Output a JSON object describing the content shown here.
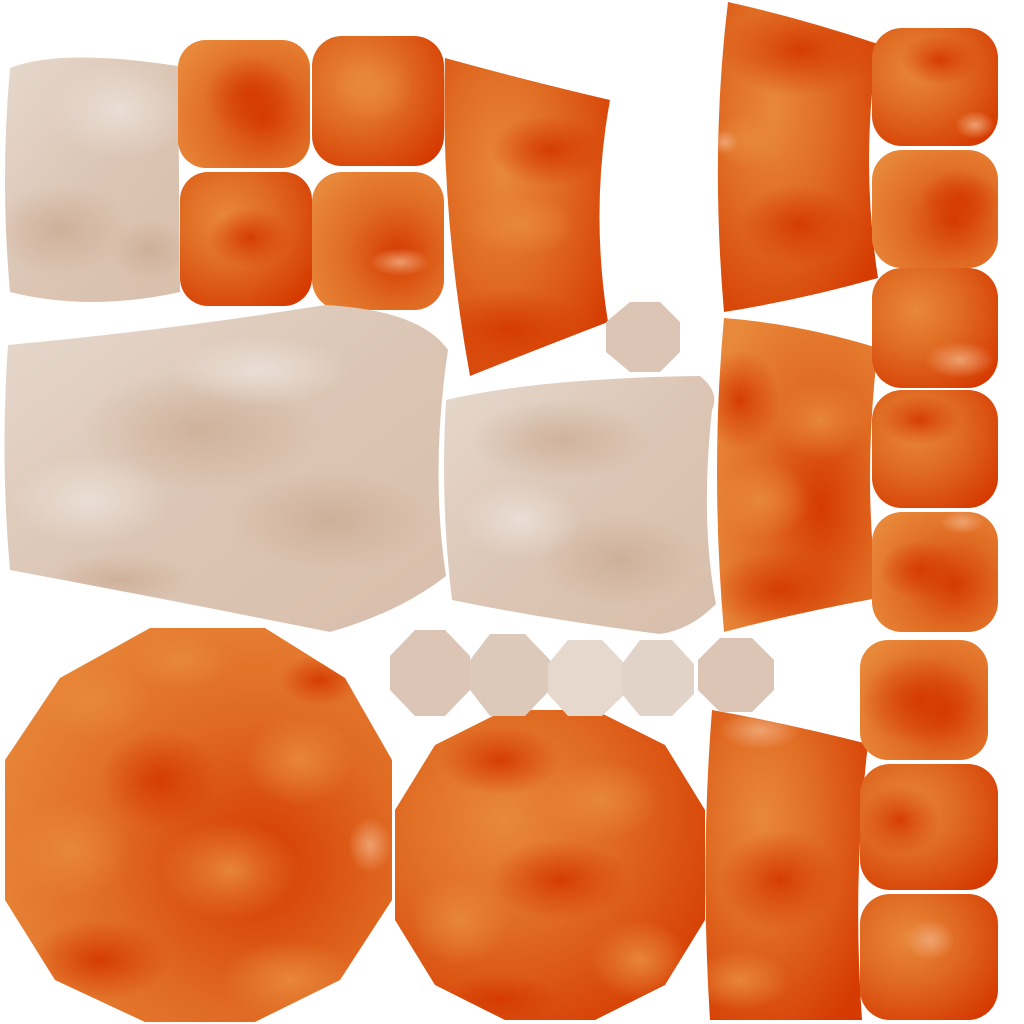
{
  "texture_atlas": {
    "background": "#ffffff",
    "palette": {
      "orange_deep": "#d53a00",
      "orange_mid": "#e06a22",
      "orange_light": "#e8883a",
      "orange_highlight": "#f0a878",
      "cream_base": "#dcc5b4",
      "cream_light": "#ebe0d8",
      "cream_shadow": "#c9a88f"
    },
    "islands": [
      {
        "id": "cream-panel-top-left",
        "material": "cream"
      },
      {
        "id": "orange-square-1",
        "material": "orange"
      },
      {
        "id": "orange-square-2",
        "material": "orange"
      },
      {
        "id": "orange-square-3",
        "material": "orange"
      },
      {
        "id": "orange-square-4",
        "material": "orange"
      },
      {
        "id": "orange-curved-panel-top",
        "material": "orange"
      },
      {
        "id": "cream-panel-large",
        "material": "cream"
      },
      {
        "id": "cream-panel-middle",
        "material": "cream"
      },
      {
        "id": "cream-octagon-small-top",
        "material": "cream"
      },
      {
        "id": "orange-strip-upper",
        "material": "orange"
      },
      {
        "id": "orange-strip-middle",
        "material": "orange"
      },
      {
        "id": "orange-strip-lower",
        "material": "orange"
      },
      {
        "id": "orange-tile-column-top",
        "material": "orange"
      },
      {
        "id": "orange-tile-column-bottom",
        "material": "orange"
      },
      {
        "id": "orange-disc-large",
        "material": "orange"
      },
      {
        "id": "orange-disc-medium",
        "material": "orange"
      },
      {
        "id": "cream-octagon-row",
        "material": "cream"
      }
    ]
  }
}
